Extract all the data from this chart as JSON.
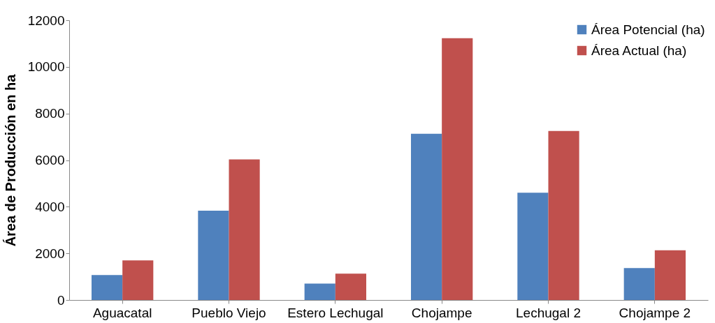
{
  "chart_data": {
    "type": "bar",
    "ylabel": "Área de Producción  en  ha",
    "categories": [
      "Aguacatal",
      "Pueblo Viejo",
      "Estero Lechugal",
      "Chojampe",
      "Lechugal 2",
      "Chojampe 2"
    ],
    "series": [
      {
        "name": "Área Potencial (ha)",
        "color": "#4f81bd",
        "values": [
          1070,
          3830,
          700,
          7130,
          4600,
          1370
        ]
      },
      {
        "name": "Área  Actual (ha)",
        "color": "#c0504d",
        "values": [
          1700,
          6030,
          1130,
          11230,
          7250,
          2130
        ]
      }
    ],
    "ylim": [
      0,
      12000
    ],
    "yticks": [
      0,
      2000,
      4000,
      6000,
      8000,
      10000,
      12000
    ],
    "grid": false,
    "legend": "top right"
  }
}
